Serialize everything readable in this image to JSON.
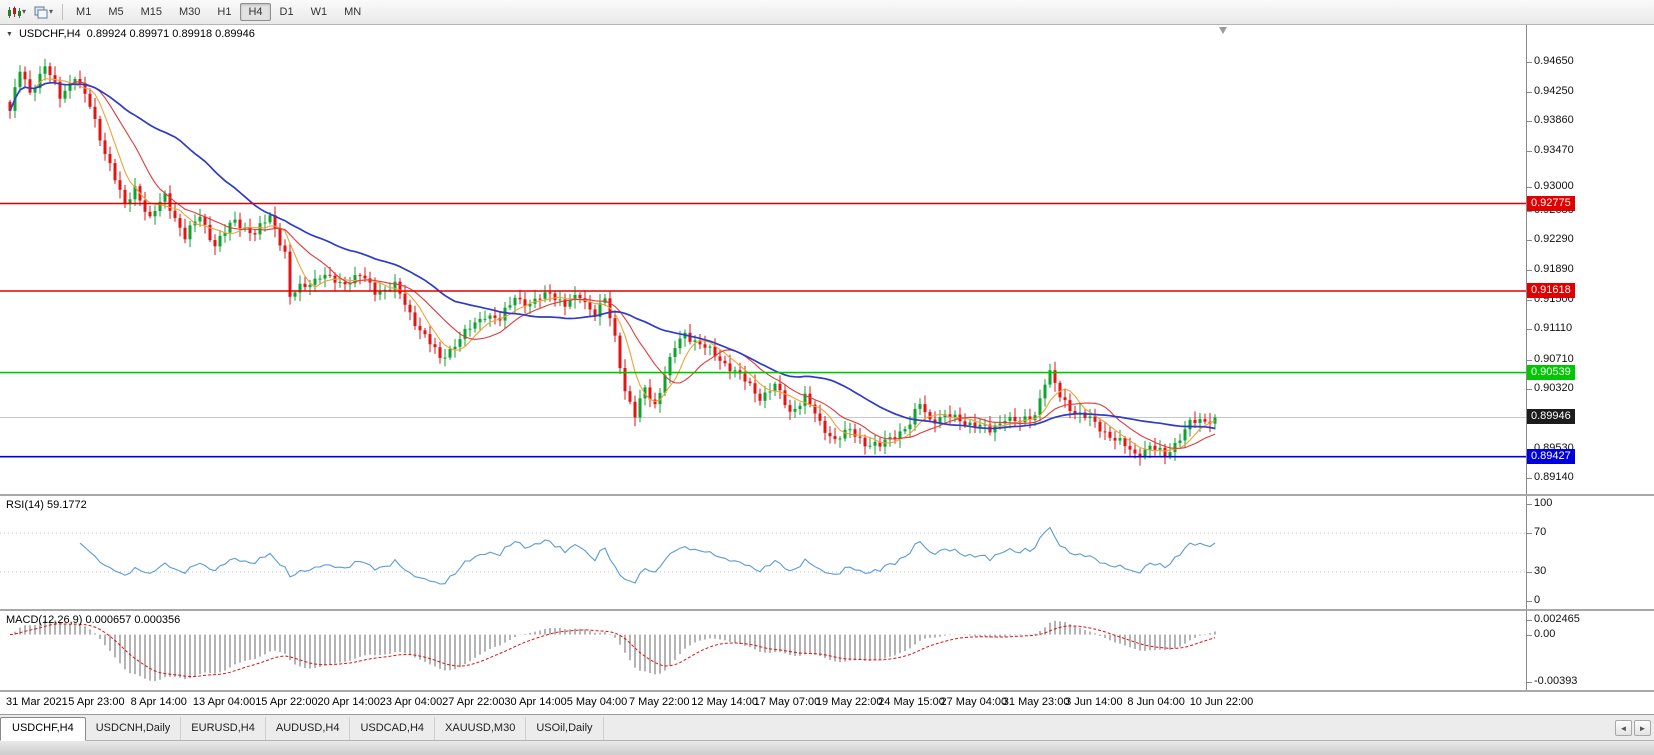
{
  "toolbar": {
    "timeframes": [
      {
        "label": "M1",
        "active": false
      },
      {
        "label": "M5",
        "active": false
      },
      {
        "label": "M15",
        "active": false
      },
      {
        "label": "M30",
        "active": false
      },
      {
        "label": "H1",
        "active": false
      },
      {
        "label": "H4",
        "active": true
      },
      {
        "label": "D1",
        "active": false
      },
      {
        "label": "W1",
        "active": false
      },
      {
        "label": "MN",
        "active": false
      }
    ]
  },
  "chart": {
    "symbol": "USDCHF,H4",
    "ohlc": "0.89924 0.89971 0.89918 0.89946"
  },
  "price_scale": {
    "ticks": [
      "0.94650",
      "0.94250",
      "0.93860",
      "0.93470",
      "0.93000",
      "0.92680",
      "0.92290",
      "0.91890",
      "0.91500",
      "0.91110",
      "0.90710",
      "0.90320",
      "0.89530",
      "0.89140"
    ]
  },
  "levels": [
    {
      "label": "0.92775",
      "value": 0.92775,
      "color": "#e00000"
    },
    {
      "label": "0.91618",
      "value": 0.91618,
      "color": "#e00000"
    },
    {
      "label": "0.90539",
      "value": 0.90539,
      "color": "#00c800"
    },
    {
      "label": "0.89427",
      "value": 0.89427,
      "color": "#0000dc"
    }
  ],
  "current_price": {
    "label": "0.89946",
    "value": 0.89946,
    "bg": "#1c1c1c"
  },
  "rsi": {
    "title": "RSI(14) 59.1772",
    "scale_labels": [
      "100",
      "70",
      "30",
      "0"
    ],
    "scale_values": [
      100,
      70,
      30,
      0
    ],
    "dotted_levels": [
      70,
      30
    ]
  },
  "macd": {
    "title": "MACD(12,26,9) 0.000657 0.000356",
    "scale_labels": [
      "0.002465",
      "0.00",
      "-0.00393"
    ]
  },
  "time_axis": [
    "31 Mar 2021",
    "5 Apr 23:00",
    "8 Apr 14:00",
    "13 Apr 04:00",
    "15 Apr 22:00",
    "20 Apr 14:00",
    "23 Apr 04:00",
    "27 Apr 22:00",
    "30 Apr 14:00",
    "5 May 04:00",
    "7 May 22:00",
    "12 May 14:00",
    "17 May 07:00",
    "19 May 22:00",
    "24 May 15:00",
    "27 May 04:00",
    "31 May 23:00",
    "3 Jun 14:00",
    "8 Jun 04:00",
    "10 Jun 22:00"
  ],
  "tabs": [
    {
      "label": "USDCHF,H4",
      "active": true
    },
    {
      "label": "USDCNH,Daily",
      "active": false
    },
    {
      "label": "EURUSD,H4",
      "active": false
    },
    {
      "label": "AUDUSD,H4",
      "active": false
    },
    {
      "label": "USDCAD,H4",
      "active": false
    },
    {
      "label": "XAUUSD,M30",
      "active": false
    },
    {
      "label": "USOil,Daily",
      "active": false
    }
  ],
  "chart_data": {
    "main": {
      "type": "candlestick",
      "symbol": "USDCHF",
      "timeframe": "H4",
      "title": "USDCHF,H4",
      "ylim": [
        0.89,
        0.9507
      ],
      "bars_visible": 242,
      "close_waypoints": [
        [
          0,
          0.94
        ],
        [
          2,
          0.9452
        ],
        [
          4,
          0.9425
        ],
        [
          7,
          0.946
        ],
        [
          10,
          0.9418
        ],
        [
          13,
          0.9448
        ],
        [
          16,
          0.9405
        ],
        [
          18,
          0.9365
        ],
        [
          20,
          0.933
        ],
        [
          23,
          0.9272
        ],
        [
          25,
          0.93
        ],
        [
          28,
          0.9256
        ],
        [
          31,
          0.9288
        ],
        [
          35,
          0.9232
        ],
        [
          38,
          0.9262
        ],
        [
          41,
          0.9222
        ],
        [
          45,
          0.9256
        ],
        [
          49,
          0.9236
        ],
        [
          52,
          0.9262
        ],
        [
          55,
          0.9212
        ],
        [
          56,
          0.9152
        ],
        [
          58,
          0.9166
        ],
        [
          62,
          0.9182
        ],
        [
          66,
          0.9172
        ],
        [
          70,
          0.9182
        ],
        [
          73,
          0.9162
        ],
        [
          77,
          0.9168
        ],
        [
          80,
          0.9132
        ],
        [
          83,
          0.9102
        ],
        [
          86,
          0.9072
        ],
        [
          89,
          0.9092
        ],
        [
          92,
          0.9112
        ],
        [
          95,
          0.9132
        ],
        [
          98,
          0.9122
        ],
        [
          101,
          0.9156
        ],
        [
          104,
          0.9142
        ],
        [
          108,
          0.9162
        ],
        [
          111,
          0.9142
        ],
        [
          114,
          0.9156
        ],
        [
          117,
          0.9132
        ],
        [
          119,
          0.915
        ],
        [
          121,
          0.91
        ],
        [
          123,
          0.9032
        ],
        [
          125,
          0.8996
        ],
        [
          127,
          0.9032
        ],
        [
          129,
          0.9012
        ],
        [
          131,
          0.9052
        ],
        [
          133,
          0.9086
        ],
        [
          135,
          0.9106
        ],
        [
          138,
          0.9092
        ],
        [
          141,
          0.9076
        ],
        [
          144,
          0.9062
        ],
        [
          147,
          0.9042
        ],
        [
          150,
          0.9022
        ],
        [
          153,
          0.9036
        ],
        [
          156,
          0.9002
        ],
        [
          159,
          0.9022
        ],
        [
          162,
          0.8986
        ],
        [
          165,
          0.8966
        ],
        [
          168,
          0.8976
        ],
        [
          171,
          0.8962
        ],
        [
          174,
          0.8956
        ],
        [
          177,
          0.8972
        ],
        [
          180,
          0.8986
        ],
        [
          182,
          0.9012
        ],
        [
          184,
          0.8992
        ],
        [
          187,
          0.8996
        ],
        [
          190,
          0.8991
        ],
        [
          193,
          0.8986
        ],
        [
          196,
          0.8976
        ],
        [
          199,
          0.8996
        ],
        [
          202,
          0.8986
        ],
        [
          205,
          0.9
        ],
        [
          207,
          0.9042
        ],
        [
          208,
          0.9052
        ],
        [
          210,
          0.9022
        ],
        [
          213,
          0.9002
        ],
        [
          216,
          0.8991
        ],
        [
          219,
          0.8976
        ],
        [
          222,
          0.8961
        ],
        [
          225,
          0.8946
        ],
        [
          228,
          0.8956
        ],
        [
          231,
          0.8944
        ],
        [
          233,
          0.8961
        ],
        [
          236,
          0.8986
        ],
        [
          239,
          0.8991
        ],
        [
          241,
          0.89946
        ]
      ],
      "moving_averages": [
        {
          "name": "fast",
          "window": 6,
          "color": "#eda23b"
        },
        {
          "name": "mid",
          "window": 13,
          "color": "#e03a3a"
        },
        {
          "name": "slow",
          "window": 34,
          "color": "#2e3bc7"
        }
      ],
      "hlines": [
        0.92775,
        0.91618,
        0.90539,
        0.89427
      ],
      "current_price": 0.89946,
      "up_color": "#0fa32f",
      "down_color": "#e21414"
    },
    "rsi": {
      "type": "line",
      "period": 14,
      "last_value": 59.1772,
      "range": [
        0,
        100
      ],
      "levels": [
        70,
        30
      ],
      "line_color": "#5b9bd5"
    },
    "macd": {
      "type": "bar",
      "params": [
        12,
        26,
        9
      ],
      "values": [
        0.000657,
        0.000356
      ],
      "range": [
        -0.00393,
        0.002465
      ],
      "histogram_color": "#b4b4b4",
      "signal_color": "#e01010"
    }
  }
}
